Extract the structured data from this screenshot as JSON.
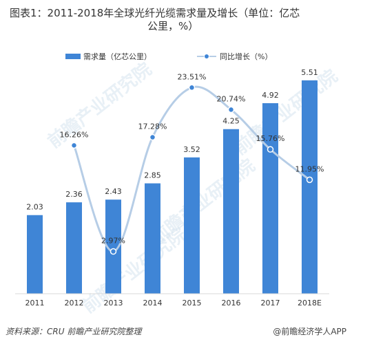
{
  "header": {
    "title_line1": "图表1：2011-2018年全球光纤光缆需求量及增长（单位：亿芯",
    "title_line2": "公里，%）"
  },
  "footer": {
    "source": "资料来源：CRU 前瞻产业研究院整理",
    "credit": "@前瞻经济学人APP"
  },
  "watermark": "前瞻产业研究院",
  "colors": {
    "bar": "#3f85d6",
    "line": "#b6cde6",
    "marker_fill": "#3f85d6",
    "marker_stroke": "#ffffff"
  },
  "chart_data": {
    "type": "bar",
    "categories": [
      "2011",
      "2012",
      "2013",
      "2014",
      "2015",
      "2016",
      "2017",
      "2018E"
    ],
    "series": [
      {
        "name": "需求量（亿芯公里）",
        "type": "bar",
        "values": [
          2.03,
          2.36,
          2.43,
          2.85,
          3.52,
          4.25,
          4.92,
          5.51
        ]
      },
      {
        "name": "同比增长（%）",
        "type": "line",
        "values": [
          null,
          16.26,
          2.97,
          17.28,
          23.51,
          20.74,
          15.76,
          11.95
        ]
      }
    ],
    "bar_labels": [
      "2.03",
      "2.36",
      "2.43",
      "2.85",
      "3.52",
      "4.25",
      "4.92",
      "5.51"
    ],
    "line_labels": [
      "",
      "16.26%",
      "2.97%",
      "17.28%",
      "23.51%",
      "20.74%",
      "15.76%",
      "11.95%"
    ],
    "legend_position": "top",
    "grid": false
  }
}
